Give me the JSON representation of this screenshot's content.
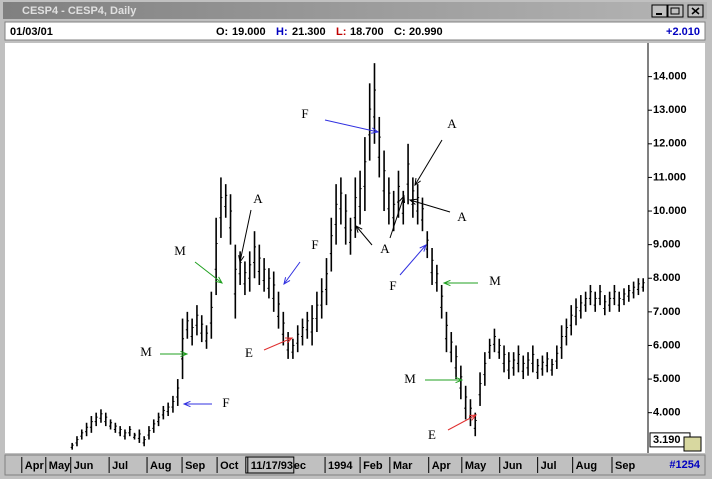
{
  "window": {
    "title": "CESP4 - CESP4, Daily"
  },
  "info": {
    "date": "01/03/01",
    "open": {
      "label": "O:",
      "value": "19.000"
    },
    "high": {
      "label": "H:",
      "value": "21.300"
    },
    "low": {
      "label": "L:",
      "value": "18.700"
    },
    "close": {
      "label": "C:",
      "value": "20.990"
    },
    "change": "+2.010"
  },
  "chart_data": {
    "type": "range-bar",
    "color": "#000000",
    "lows": [
      2.9,
      3.0,
      3.2,
      3.3,
      3.4,
      3.6,
      3.7,
      3.6,
      3.5,
      3.4,
      3.3,
      3.2,
      3.3,
      3.2,
      3.1,
      3.0,
      3.2,
      3.4,
      3.6,
      3.8,
      3.9,
      4.0,
      4.2,
      5.0,
      6.2,
      6.0,
      6.3,
      6.1,
      5.9,
      6.2,
      7.5,
      9.2,
      9.8,
      9.0,
      6.8,
      7.8,
      7.5,
      7.6,
      8.0,
      7.8,
      7.6,
      7.4,
      7.0,
      6.5,
      6.0,
      5.6,
      5.6,
      5.8,
      6.0,
      6.2,
      6.0,
      6.4,
      6.8,
      7.2,
      8.2,
      9.0,
      9.6,
      9.0,
      8.7,
      9.2,
      9.6,
      10.0,
      11.5,
      12.0,
      11.0,
      10.0,
      9.6,
      9.4,
      9.8,
      9.6,
      10.2,
      9.8,
      9.6,
      9.4,
      8.6,
      7.8,
      7.6,
      6.8,
      5.8,
      5.5,
      5.0,
      4.4,
      3.8,
      3.6,
      3.3,
      4.2,
      4.8,
      5.6,
      5.8,
      5.6,
      5.2,
      5.0,
      5.1,
      5.2,
      5.0,
      5.1,
      5.2,
      5.0,
      5.1,
      5.2,
      5.1,
      5.3,
      5.6,
      6.0,
      6.3,
      6.6,
      6.8,
      7.0,
      7.2,
      7.0,
      7.2,
      6.9,
      7.0,
      7.2,
      7.0,
      7.2,
      7.3,
      7.4,
      7.5,
      7.6
    ],
    "highs": [
      3.1,
      3.3,
      3.5,
      3.7,
      3.9,
      4.0,
      4.1,
      4.0,
      3.8,
      3.7,
      3.6,
      3.5,
      3.6,
      3.4,
      3.5,
      3.3,
      3.6,
      3.8,
      4.0,
      4.2,
      4.3,
      4.5,
      5.0,
      6.8,
      7.0,
      6.8,
      7.2,
      6.9,
      6.6,
      7.6,
      9.8,
      11.0,
      10.8,
      10.5,
      9.0,
      8.8,
      8.5,
      8.8,
      9.4,
      9.0,
      8.6,
      8.3,
      8.2,
      7.6,
      7.0,
      6.4,
      6.2,
      6.6,
      6.8,
      7.0,
      7.2,
      7.6,
      8.0,
      8.6,
      9.8,
      10.8,
      11.0,
      10.5,
      9.8,
      11.0,
      11.2,
      12.2,
      13.8,
      14.4,
      12.8,
      11.8,
      11.0,
      10.6,
      11.2,
      10.6,
      12.0,
      11.0,
      10.8,
      10.4,
      9.4,
      8.9,
      8.4,
      7.8,
      7.0,
      6.4,
      6.0,
      5.4,
      4.8,
      4.4,
      4.0,
      5.2,
      5.8,
      6.2,
      6.5,
      6.2,
      6.0,
      5.8,
      5.8,
      6.0,
      5.7,
      5.8,
      6.0,
      5.6,
      5.7,
      5.8,
      5.6,
      6.0,
      6.6,
      6.8,
      7.2,
      7.4,
      7.5,
      7.6,
      7.8,
      7.6,
      7.8,
      7.5,
      7.6,
      7.8,
      7.6,
      7.7,
      7.8,
      7.9,
      8.0,
      8.0
    ],
    "xlim": [
      -14,
      120
    ],
    "xticks": [
      {
        "value": -10.5,
        "label": "Apr"
      },
      {
        "value": -5.5,
        "label": "May"
      },
      {
        "value": -0.3,
        "label": "Jun"
      },
      {
        "value": 7.7,
        "label": "Jul"
      },
      {
        "value": 15.6,
        "label": "Aug"
      },
      {
        "value": 22.9,
        "label": "Sep"
      },
      {
        "value": 30.2,
        "label": "Oct"
      },
      {
        "value": 36.6,
        "label": "11/17/93"
      },
      {
        "value": 43.9,
        "label": "Dec"
      },
      {
        "value": 52.7,
        "label": "1994"
      },
      {
        "value": 60.0,
        "label": "Feb"
      },
      {
        "value": 66.2,
        "label": "Mar"
      },
      {
        "value": 74.3,
        "label": "Apr"
      },
      {
        "value": 81.2,
        "label": "May"
      },
      {
        "value": 89.1,
        "label": "Jun"
      },
      {
        "value": 97.0,
        "label": "Jul"
      },
      {
        "value": 104.3,
        "label": "Aug"
      },
      {
        "value": 112.5,
        "label": "Sep"
      }
    ],
    "ylim": [
      2.8,
      15.0
    ],
    "yticks": [
      {
        "value": 4,
        "label": "4.000"
      },
      {
        "value": 5,
        "label": "5.000"
      },
      {
        "value": 6,
        "label": "6.000"
      },
      {
        "value": 7,
        "label": "7.000"
      },
      {
        "value": 8,
        "label": "8.000"
      },
      {
        "value": 9,
        "label": "9.000"
      },
      {
        "value": 10,
        "label": "10.000"
      },
      {
        "value": 11,
        "label": "11.000"
      },
      {
        "value": 12,
        "label": "12.000"
      },
      {
        "value": 13,
        "label": "13.000"
      },
      {
        "value": 14,
        "label": "14.000"
      }
    ],
    "last_price": {
      "value": 3.19,
      "label": "3.190"
    },
    "annotations": [
      "F",
      "A",
      "A",
      "M",
      "F",
      "A",
      "A",
      "F",
      "M",
      "M",
      "E",
      "M",
      "F",
      "E"
    ],
    "bar_count": "#1254"
  }
}
